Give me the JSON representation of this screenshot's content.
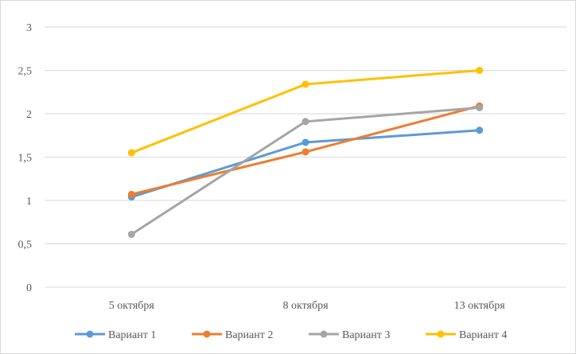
{
  "chart_data": {
    "type": "line",
    "categories": [
      "5 октября",
      "8 октября",
      "13 октября"
    ],
    "ylim": [
      0,
      3
    ],
    "yticks": [
      "0",
      "0,5",
      "1",
      "1,5",
      "2",
      "2,5",
      "3"
    ],
    "ytick_values": [
      0,
      0.5,
      1,
      1.5,
      2,
      2.5,
      3
    ],
    "grid": true,
    "legend_position": "bottom",
    "series": [
      {
        "name": "Вариант 1",
        "color": "#5b9bd5",
        "values": [
          1.04,
          1.67,
          1.81
        ]
      },
      {
        "name": "Вариант 2",
        "color": "#ed7d31",
        "values": [
          1.07,
          1.56,
          2.09
        ]
      },
      {
        "name": "Вариант 3",
        "color": "#a5a5a5",
        "values": [
          0.61,
          1.91,
          2.07
        ]
      },
      {
        "name": "Вариант 4",
        "color": "#ffc000",
        "values": [
          1.55,
          2.34,
          2.5
        ]
      }
    ]
  }
}
